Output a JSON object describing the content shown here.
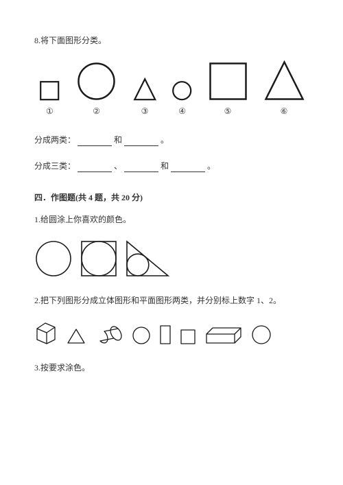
{
  "q8": {
    "title": "8.将下面图形分类。",
    "shapes": [
      {
        "type": "square",
        "size": 26,
        "stroke": "#1a1a1a",
        "strokeWidth": 2.2,
        "label": "①",
        "slotWidth": 46
      },
      {
        "type": "circle",
        "size": 52,
        "stroke": "#1a1a1a",
        "strokeWidth": 2.5,
        "label": "②",
        "slotWidth": 74
      },
      {
        "type": "triangle",
        "size": 30,
        "stroke": "#1a1a1a",
        "strokeWidth": 2.2,
        "label": "③",
        "slotWidth": 50
      },
      {
        "type": "circle",
        "size": 26,
        "stroke": "#1a1a1a",
        "strokeWidth": 2.2,
        "label": "④",
        "slotWidth": 42
      },
      {
        "type": "square",
        "size": 52,
        "stroke": "#1a1a1a",
        "strokeWidth": 2.5,
        "label": "⑤",
        "slotWidth": 74
      },
      {
        "type": "triangle",
        "size": 54,
        "stroke": "#1a1a1a",
        "strokeWidth": 2.5,
        "label": "⑥",
        "slotWidth": 74
      }
    ],
    "fill1_prefix": "分成两类：",
    "fill1_mid": "和",
    "fill1_suffix": "。",
    "fill2_prefix": "分成三类：",
    "fill2_sep1": "、",
    "fill2_sep2": "和",
    "fill2_suffix": "。"
  },
  "section4": {
    "title": "四．作图题(共 4 题，共 20 分)"
  },
  "q1": {
    "title": "1.给圆涂上你喜欢的颜色。",
    "stroke": "#1a1a1a",
    "strokeWidth": 1.6
  },
  "q2": {
    "title": "2.把下列图形分成立体图形和平面图形两类，并分别标上数字 1、2。",
    "stroke": "#1a1a1a",
    "strokeWidth": 1.3
  },
  "q3": {
    "title": "3.按要求涂色。"
  }
}
